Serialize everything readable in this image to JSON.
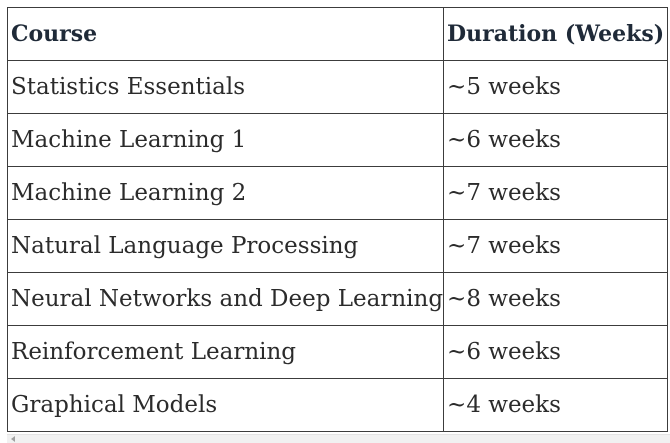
{
  "table": {
    "headers": [
      "Course",
      "Duration (Weeks)"
    ],
    "rows": [
      [
        "Statistics Essentials",
        "~5 weeks"
      ],
      [
        "Machine Learning 1",
        "~6 weeks"
      ],
      [
        "Machine Learning 2",
        "~7 weeks"
      ],
      [
        "Natural Language Processing",
        "~7 weeks"
      ],
      [
        "Neural Networks and Deep Learning",
        "~8 weeks"
      ],
      [
        "Reinforcement Learning",
        "~6 weeks"
      ],
      [
        "Graphical Models",
        "~4 weeks"
      ]
    ]
  }
}
